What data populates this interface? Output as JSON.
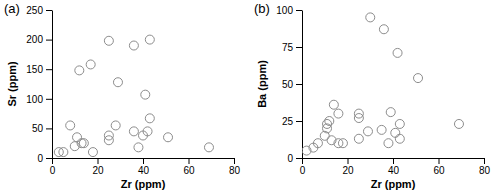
{
  "chart_data": [
    {
      "type": "scatter",
      "title": "(a)",
      "x_label": "Zr (ppm)",
      "y_label": "Sr (ppm)",
      "x": [
        3,
        5,
        8,
        10,
        11,
        12,
        13,
        14,
        17,
        18,
        25,
        25,
        25,
        28,
        29,
        36,
        36,
        38,
        40,
        41,
        42,
        43,
        43,
        51,
        69
      ],
      "values": [
        10,
        10,
        55,
        20,
        35,
        148,
        25,
        25,
        158,
        10,
        198,
        30,
        38,
        55,
        128,
        190,
        45,
        18,
        38,
        107,
        45,
        67,
        200,
        35,
        18
      ],
      "xlim": [
        0,
        80
      ],
      "xticks": [
        0,
        20,
        40,
        60,
        80
      ],
      "ylim": [
        0,
        250
      ],
      "yticks": [
        0,
        50,
        100,
        150,
        200,
        250
      ],
      "color": "#8c8c8c",
      "marker": "circle"
    },
    {
      "type": "scatter",
      "title": "(b)",
      "x_label": "Zr (ppm)",
      "y_label": "Ba (ppm)",
      "x": [
        2,
        5,
        7,
        10,
        11,
        11,
        12,
        13,
        14,
        16,
        16,
        18,
        25,
        25,
        25,
        29,
        30,
        35,
        36,
        38,
        39,
        41,
        42,
        43,
        43,
        51,
        69
      ],
      "values": [
        5,
        7,
        10,
        15,
        20,
        23,
        25,
        12,
        36,
        30,
        10,
        10,
        30,
        27,
        13,
        18,
        95,
        19,
        87,
        10,
        31,
        17,
        71,
        13,
        23,
        54,
        23
      ],
      "xlim": [
        0,
        80
      ],
      "xticks": [
        0,
        20,
        40,
        60,
        80
      ],
      "ylim": [
        0,
        100
      ],
      "yticks": [
        0,
        25,
        50,
        75,
        100
      ],
      "color": "#8c8c8c",
      "marker": "circle"
    }
  ]
}
